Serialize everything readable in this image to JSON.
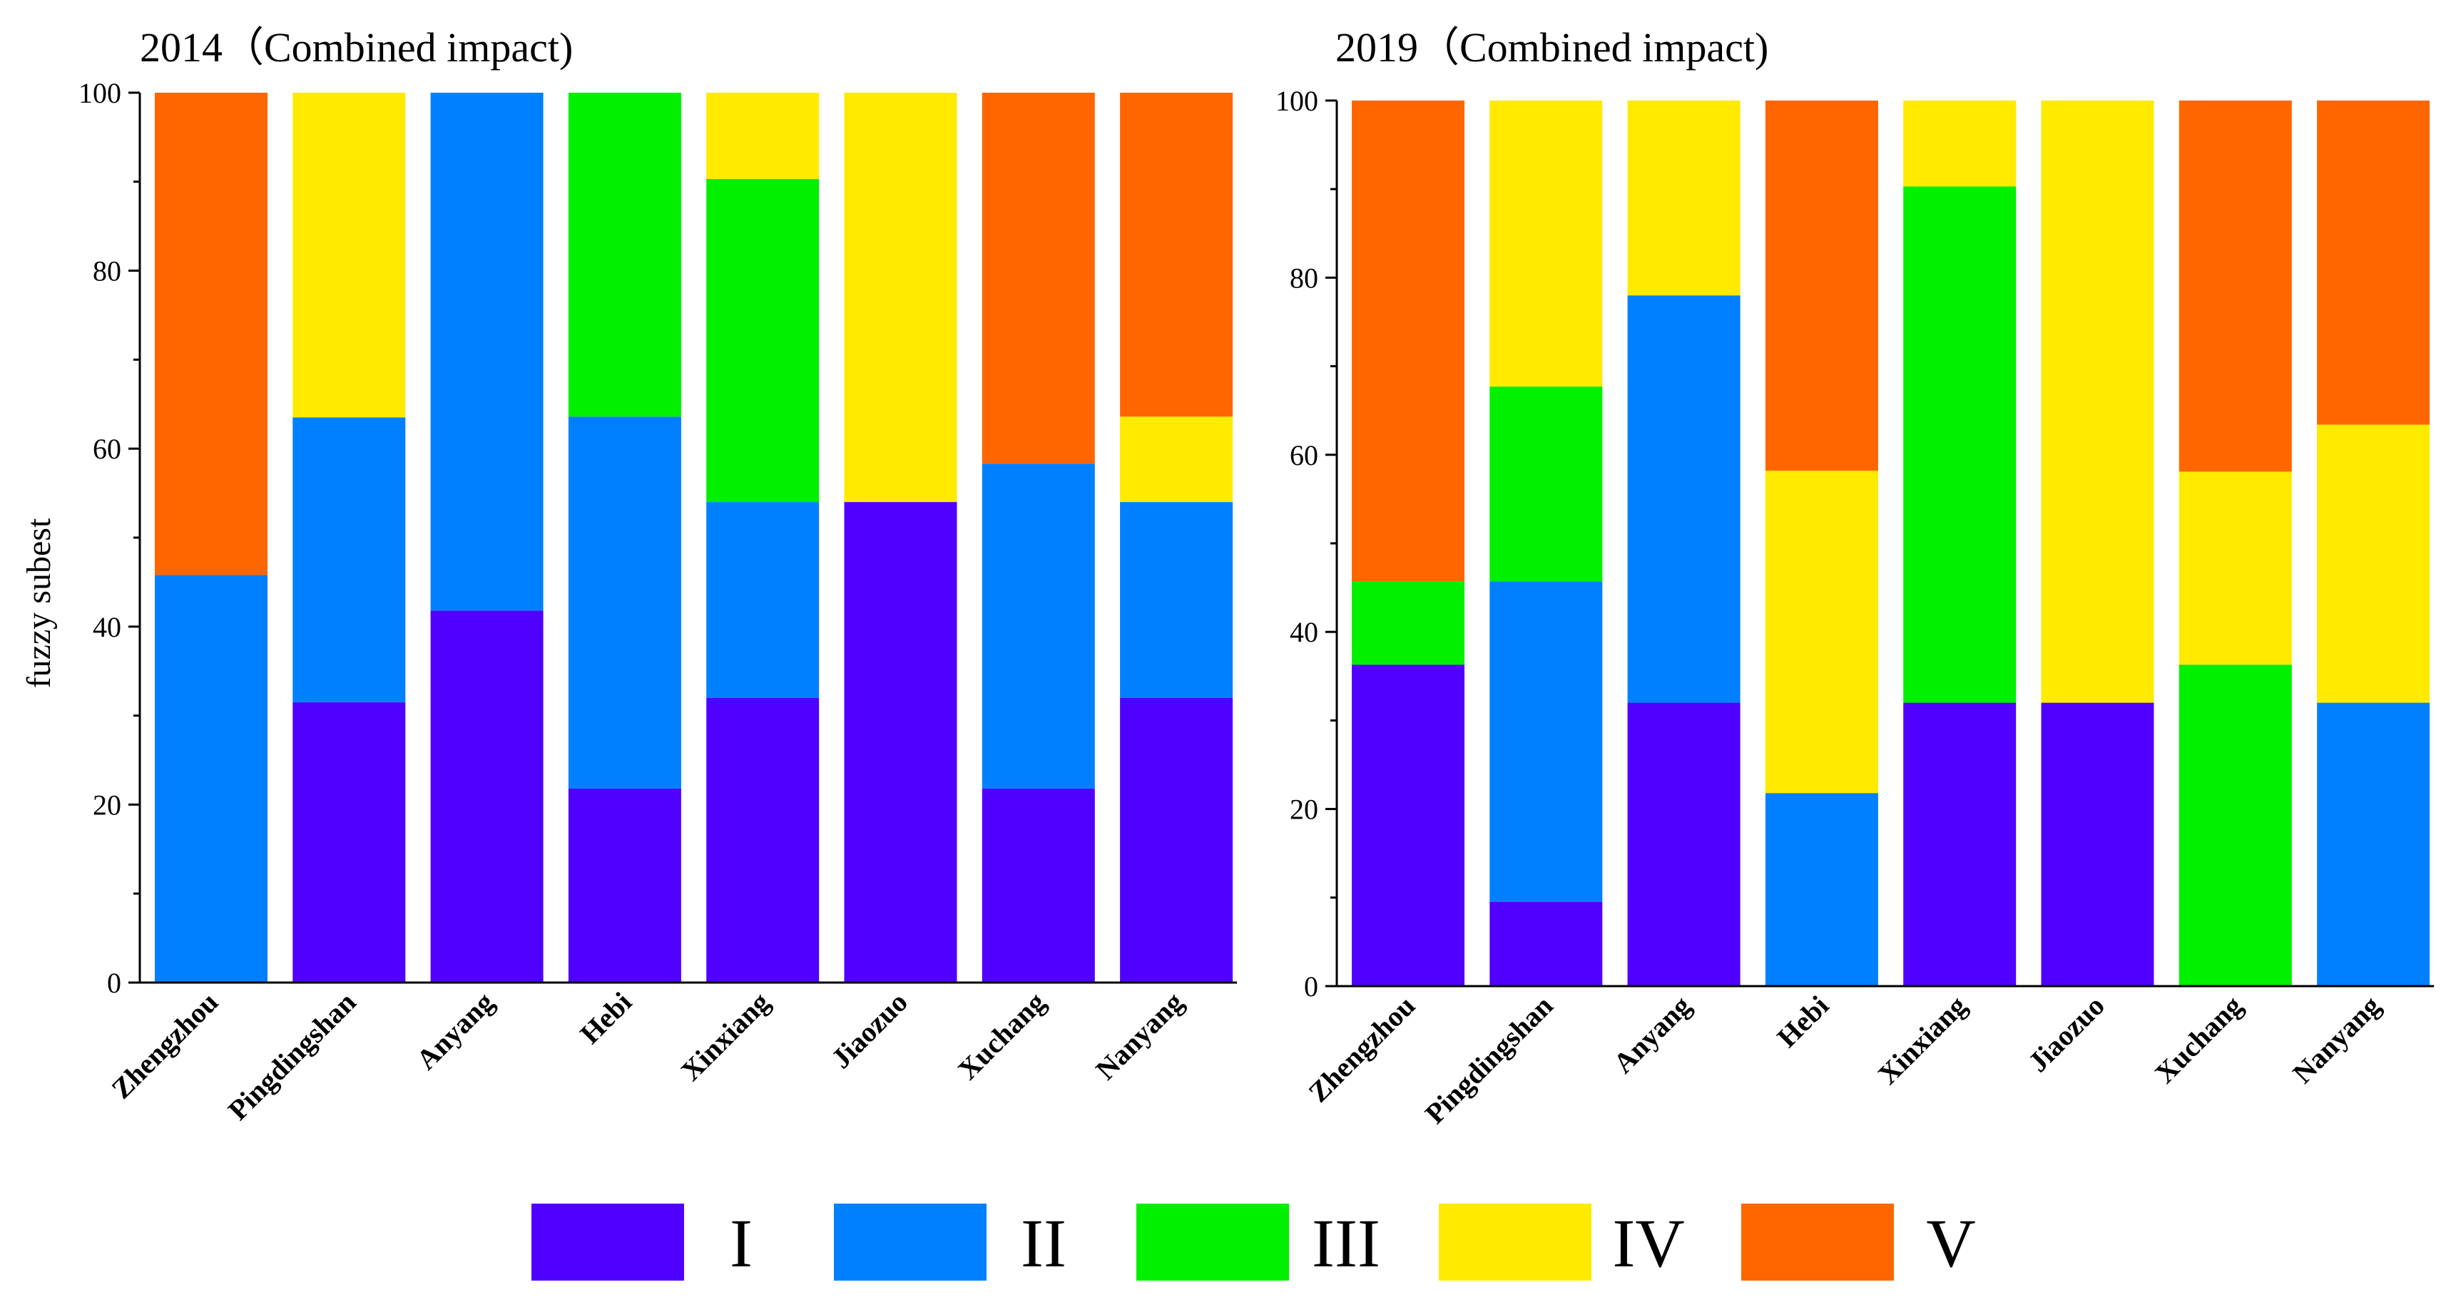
{
  "chart_data": [
    {
      "type": "bar",
      "stacked": true,
      "title": "2014（Combined impact)",
      "ylabel": "fuzzy subest",
      "xlabel": "",
      "ylim": [
        0,
        100
      ],
      "yticks": [
        0,
        20,
        40,
        60,
        80,
        100
      ],
      "categories": [
        "Zhengzhou",
        "Pingdingshan",
        "Anyang",
        "Hebi",
        "Xinxiang",
        "Jiaozuo",
        "Xuchang",
        "Nanyang"
      ],
      "series": [
        {
          "name": "I",
          "values": [
            0,
            31.5,
            41.8,
            21.8,
            32,
            54,
            21.8,
            32
          ]
        },
        {
          "name": "II",
          "values": [
            45.8,
            32,
            58.2,
            41.8,
            22,
            0,
            36.5,
            22
          ]
        },
        {
          "name": "III",
          "values": [
            0,
            0,
            0,
            36.4,
            36.3,
            0,
            0,
            0
          ]
        },
        {
          "name": "IV",
          "values": [
            0,
            36.5,
            0,
            0,
            9.7,
            46,
            0,
            9.6
          ]
        },
        {
          "name": "V",
          "values": [
            54.2,
            0,
            0,
            0,
            0,
            0,
            41.7,
            36.4
          ]
        }
      ]
    },
    {
      "type": "bar",
      "stacked": true,
      "title": "2019（Combined impact)",
      "ylabel": "",
      "xlabel": "",
      "ylim": [
        0,
        100
      ],
      "yticks": [
        0,
        20,
        40,
        60,
        80,
        100
      ],
      "categories": [
        "Zhengzhou",
        "Pingdingshan",
        "Anyang",
        "Hebi",
        "Xinxiang",
        "Jiaozuo",
        "Xuchang",
        "Nanyang"
      ],
      "series": [
        {
          "name": "I",
          "values": [
            36.3,
            9.5,
            32,
            0,
            32,
            32,
            0,
            0
          ]
        },
        {
          "name": "II",
          "values": [
            0,
            36.2,
            46,
            21.8,
            0,
            0,
            0,
            32
          ]
        },
        {
          "name": "III",
          "values": [
            9.4,
            22,
            0,
            0,
            58.3,
            0,
            36.3,
            0
          ]
        },
        {
          "name": "IV",
          "values": [
            0,
            32.3,
            22,
            36.4,
            9.7,
            68,
            21.8,
            31.4
          ]
        },
        {
          "name": "V",
          "values": [
            54.3,
            0,
            0,
            41.8,
            0,
            0,
            41.9,
            36.6
          ]
        }
      ]
    }
  ],
  "legend": [
    {
      "label": "I",
      "color": "#5000FF"
    },
    {
      "label": "II",
      "color": "#0080FF"
    },
    {
      "label": "III",
      "color": "#00F000"
    },
    {
      "label": "IV",
      "color": "#FFEA00"
    },
    {
      "label": "V",
      "color": "#FF6600"
    }
  ]
}
